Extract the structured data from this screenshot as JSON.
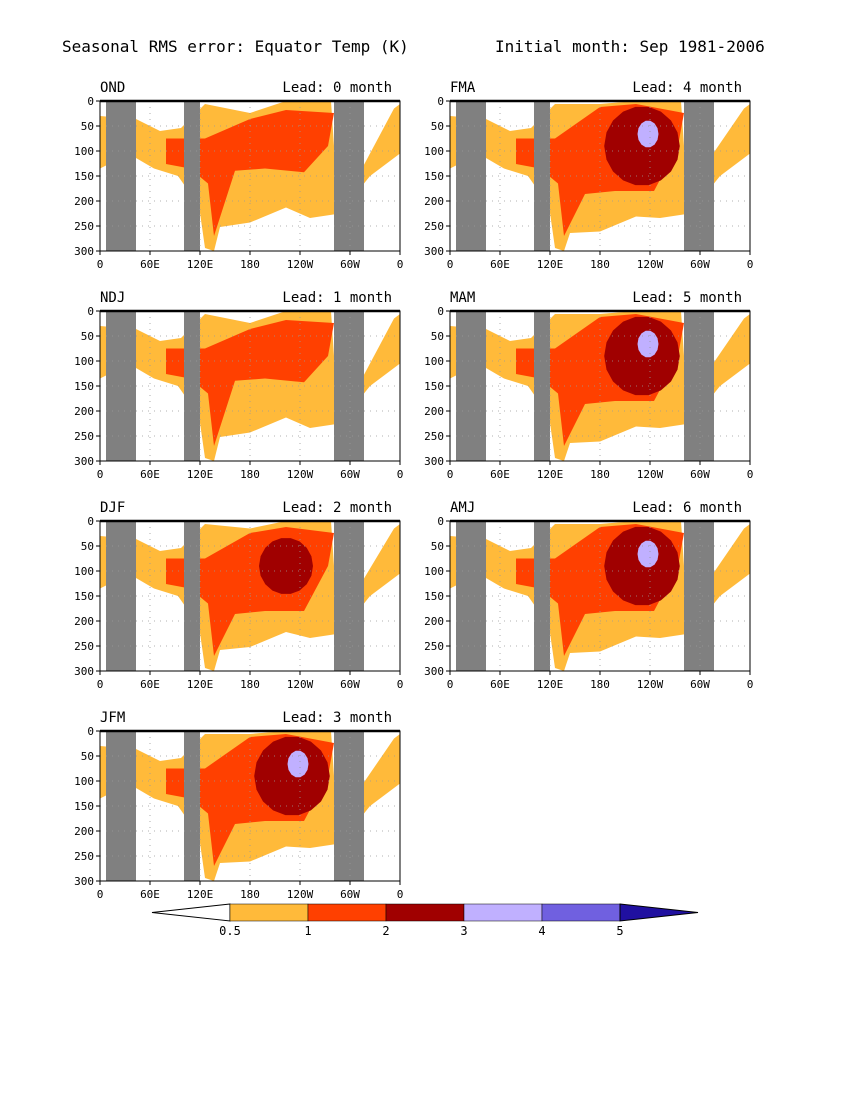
{
  "title_left": "Seasonal RMS error: Equator Temp (K)",
  "title_right": "Initial month: Sep 1981-2006",
  "chart_data": {
    "type": "heatmap",
    "title": "Seasonal RMS error: Equator Temp (K)",
    "subtitle": "Initial month: Sep 1981-2006",
    "x_ticks": [
      "0",
      "60E",
      "120E",
      "180",
      "120W",
      "60W",
      "0"
    ],
    "y_ticks": [
      "0",
      "50",
      "100",
      "150",
      "200",
      "250",
      "300"
    ],
    "xlim": [
      0,
      360
    ],
    "ylim": [
      300,
      0
    ],
    "grid": true,
    "land_color": "#808080",
    "land_bands": [
      [
        12,
        72
      ],
      [
        168,
        200
      ],
      [
        468,
        528
      ]
    ],
    "colorbar": {
      "levels": [
        "0.5",
        "1",
        "2",
        "3",
        "4",
        "5"
      ],
      "colors": [
        "#ffffff",
        "#ffba3a",
        "#ff4000",
        "#a00000",
        "#c0b0ff",
        "#7060e0",
        "#2010a0"
      ]
    },
    "panels": [
      {
        "season": "OND",
        "lead": "Lead: 0 month",
        "peak": 2
      },
      {
        "season": "NDJ",
        "lead": "Lead: 1 month",
        "peak": 2
      },
      {
        "season": "DJF",
        "lead": "Lead: 2 month",
        "peak": 3
      },
      {
        "season": "JFM",
        "lead": "Lead: 3 month",
        "peak": 4
      },
      {
        "season": "FMA",
        "lead": "Lead: 4 month",
        "peak": 4
      },
      {
        "season": "MAM",
        "lead": "Lead: 5 month",
        "peak": 4
      },
      {
        "season": "AMJ",
        "lead": "Lead: 6 month",
        "peak": 4
      }
    ]
  }
}
